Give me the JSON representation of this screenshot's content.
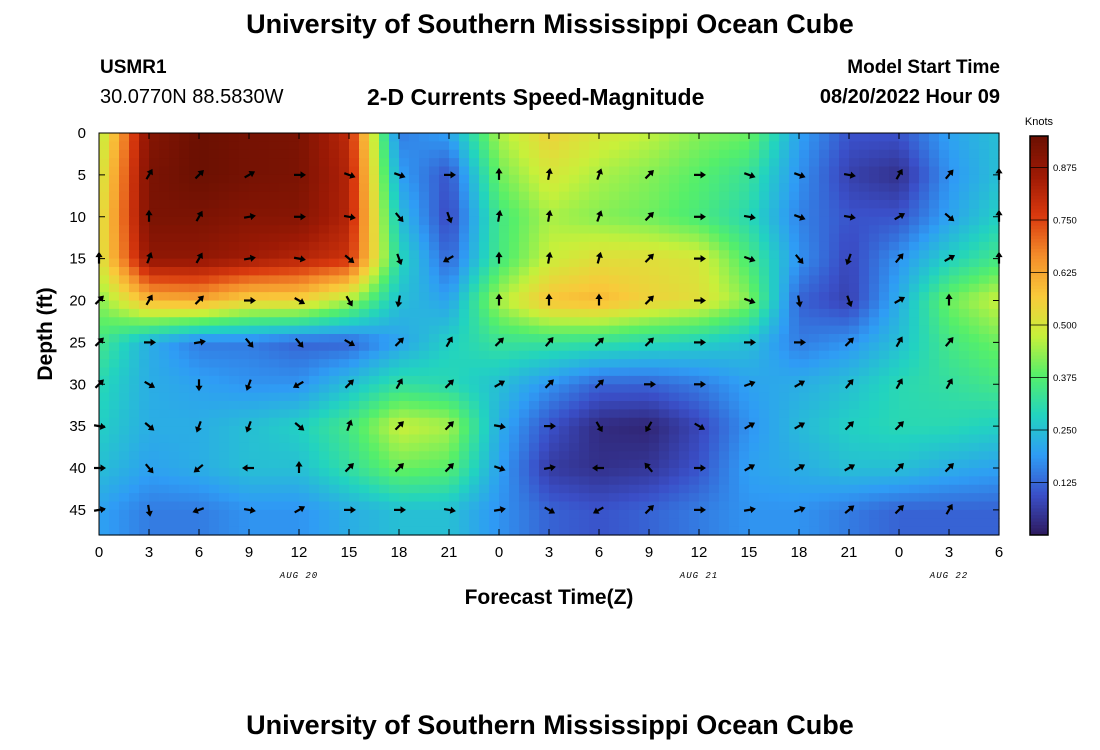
{
  "header": {
    "title_top": "University of Southern Mississippi Ocean Cube",
    "title_bottom": "University of Southern Mississippi Ocean Cube",
    "station": "USMR1",
    "coords": "30.0770N  88.5830W",
    "subtitle": "2-D Currents Speed-Magnitude",
    "model_start_label": "Model Start Time",
    "model_start_value": "08/20/2022 Hour 09"
  },
  "chart_data": {
    "type": "heatmap",
    "xlabel": "Forecast Time(Z)",
    "ylabel": "Depth (ft)",
    "x_ticks": [
      "0",
      "3",
      "6",
      "9",
      "12",
      "15",
      "18",
      "21",
      "0",
      "3",
      "6",
      "9",
      "12",
      "15",
      "18",
      "21",
      "0",
      "3",
      "6"
    ],
    "x_range_hours": [
      0,
      54
    ],
    "date_labels": [
      {
        "label": "AUG 20",
        "hour": 12
      },
      {
        "label": "AUG 21",
        "hour": 36
      },
      {
        "label": "AUG 22",
        "hour": 51
      }
    ],
    "y_ticks": [
      0,
      5,
      10,
      15,
      20,
      25,
      30,
      35,
      40,
      45
    ],
    "ylim": [
      0,
      48
    ],
    "colorbar": {
      "label": "Knots",
      "range": [
        0,
        0.95
      ],
      "ticks": [
        "0.875",
        "0.750",
        "0.625",
        "0.500",
        "0.375",
        "0.250",
        "0.125"
      ],
      "colors": [
        "#2e1a5e",
        "#3a4fc8",
        "#2f9cf5",
        "#22d3c0",
        "#55ef6a",
        "#c8f03a",
        "#f9c93a",
        "#f48c2a",
        "#d9390e",
        "#9e1a05",
        "#6b1002"
      ]
    },
    "depths_ft": [
      0,
      5,
      10,
      15,
      20,
      25,
      30,
      35,
      40,
      45
    ],
    "times_hr": [
      0,
      3,
      6,
      9,
      12,
      15,
      18,
      21,
      24,
      27,
      30,
      33,
      36,
      39,
      42,
      45,
      48,
      51,
      54
    ],
    "speed_knots": [
      [
        0.45,
        0.9,
        0.95,
        0.93,
        0.92,
        0.8,
        0.15,
        0.2,
        0.45,
        0.55,
        0.5,
        0.47,
        0.42,
        0.4,
        0.2,
        0.1,
        0.1,
        0.2,
        0.25
      ],
      [
        0.48,
        0.92,
        0.95,
        0.93,
        0.92,
        0.82,
        0.2,
        0.1,
        0.4,
        0.5,
        0.45,
        0.42,
        0.38,
        0.33,
        0.18,
        0.07,
        0.04,
        0.18,
        0.25
      ],
      [
        0.5,
        0.92,
        0.92,
        0.9,
        0.9,
        0.82,
        0.25,
        0.08,
        0.35,
        0.45,
        0.42,
        0.4,
        0.36,
        0.3,
        0.16,
        0.1,
        0.1,
        0.2,
        0.28
      ],
      [
        0.5,
        0.88,
        0.88,
        0.85,
        0.82,
        0.78,
        0.3,
        0.12,
        0.35,
        0.48,
        0.52,
        0.52,
        0.5,
        0.36,
        0.18,
        0.08,
        0.18,
        0.28,
        0.35
      ],
      [
        0.42,
        0.6,
        0.62,
        0.55,
        0.55,
        0.45,
        0.25,
        0.2,
        0.45,
        0.58,
        0.6,
        0.55,
        0.52,
        0.42,
        0.12,
        0.07,
        0.22,
        0.4,
        0.48
      ],
      [
        0.35,
        0.22,
        0.15,
        0.15,
        0.12,
        0.12,
        0.2,
        0.28,
        0.33,
        0.33,
        0.32,
        0.3,
        0.28,
        0.25,
        0.15,
        0.18,
        0.25,
        0.35,
        0.4
      ],
      [
        0.3,
        0.22,
        0.2,
        0.18,
        0.18,
        0.25,
        0.32,
        0.3,
        0.25,
        0.18,
        0.12,
        0.12,
        0.15,
        0.2,
        0.22,
        0.25,
        0.3,
        0.32,
        0.35
      ],
      [
        0.28,
        0.22,
        0.22,
        0.25,
        0.28,
        0.35,
        0.48,
        0.45,
        0.22,
        0.1,
        0.03,
        0.02,
        0.08,
        0.18,
        0.24,
        0.28,
        0.3,
        0.3,
        0.28
      ],
      [
        0.25,
        0.2,
        0.22,
        0.25,
        0.25,
        0.32,
        0.4,
        0.38,
        0.2,
        0.06,
        0.04,
        0.05,
        0.1,
        0.2,
        0.22,
        0.25,
        0.25,
        0.22,
        0.2
      ],
      [
        0.2,
        0.15,
        0.15,
        0.18,
        0.18,
        0.22,
        0.25,
        0.25,
        0.18,
        0.12,
        0.1,
        0.12,
        0.15,
        0.18,
        0.18,
        0.15,
        0.12,
        0.12,
        0.12
      ]
    ],
    "arrow_times_hr": [
      0,
      3,
      6,
      9,
      12,
      15,
      18,
      21,
      24,
      27,
      30,
      33,
      36,
      39,
      42,
      45,
      48,
      51,
      54
    ],
    "arrow_depths_ft": [
      5,
      10,
      15,
      20,
      25,
      30,
      35,
      40,
      45
    ],
    "arrow_dir_deg": [
      [
        null,
        30,
        45,
        60,
        90,
        110,
        110,
        90,
        0,
        10,
        20,
        45,
        90,
        110,
        110,
        100,
        30,
        40,
        0
      ],
      [
        null,
        0,
        30,
        80,
        90,
        100,
        140,
        160,
        10,
        10,
        20,
        45,
        90,
        100,
        110,
        100,
        60,
        130,
        0
      ],
      [
        0,
        20,
        30,
        80,
        100,
        130,
        160,
        240,
        0,
        10,
        15,
        45,
        90,
        110,
        140,
        200,
        40,
        60,
        0
      ],
      [
        45,
        30,
        45,
        90,
        120,
        150,
        190,
        null,
        0,
        0,
        0,
        45,
        90,
        110,
        170,
        160,
        60,
        0
      ],
      [
        45,
        90,
        80,
        140,
        140,
        120,
        45,
        30,
        45,
        40,
        45,
        45,
        90,
        90,
        90,
        45,
        30,
        40
      ],
      [
        45,
        120,
        180,
        200,
        240,
        45,
        30,
        45,
        60,
        45,
        45,
        90,
        90,
        70,
        60,
        40,
        30,
        30
      ],
      [
        100,
        130,
        200,
        200,
        130,
        20,
        45,
        45,
        100,
        90,
        150,
        210,
        120,
        60,
        60,
        45,
        45
      ],
      [
        90,
        140,
        230,
        270,
        0,
        45,
        45,
        45,
        110,
        80,
        270,
        320,
        90,
        60,
        60,
        60,
        45,
        45
      ],
      [
        80,
        170,
        250,
        100,
        60,
        90,
        90,
        100,
        80,
        120,
        240,
        45,
        90,
        80,
        70,
        50,
        45,
        30
      ]
    ]
  }
}
